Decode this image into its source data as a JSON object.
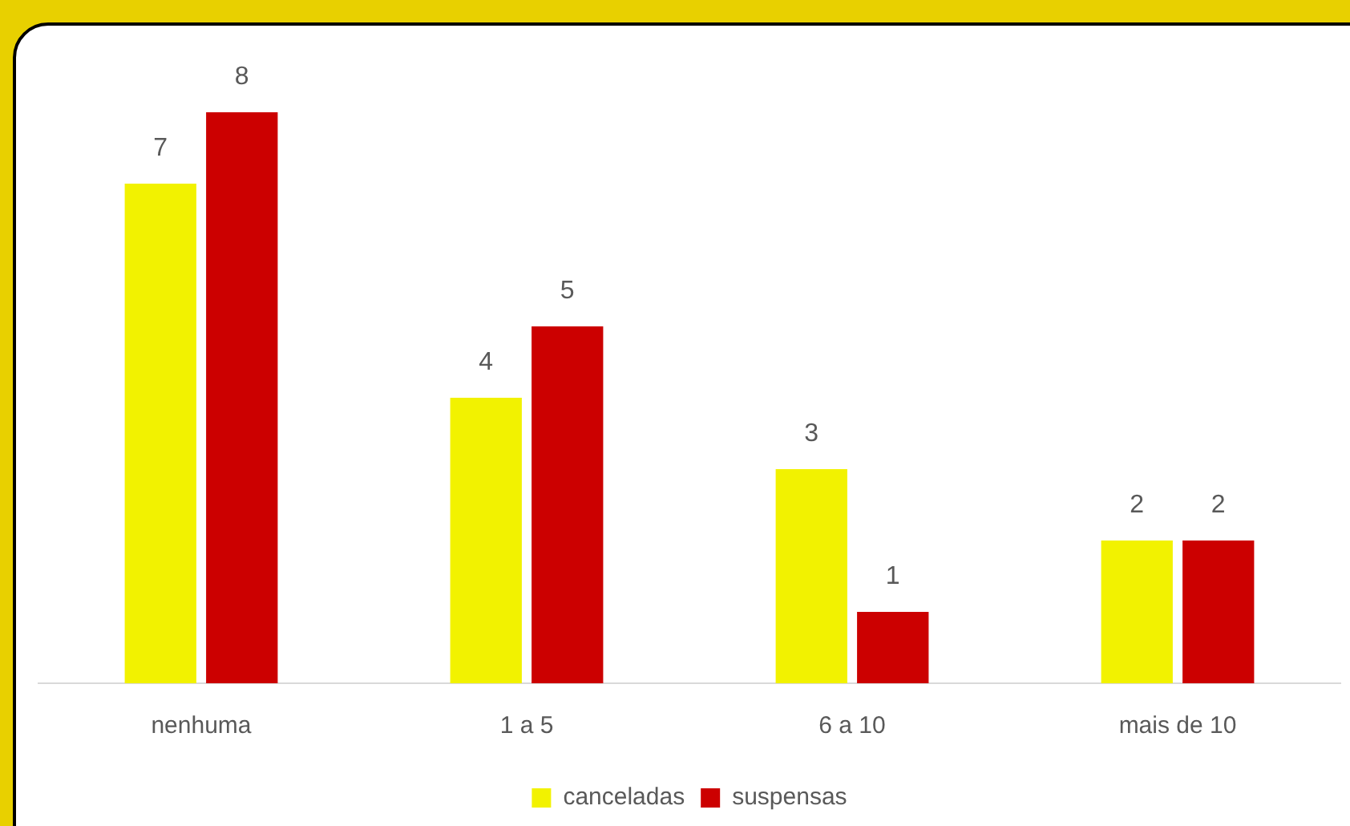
{
  "chart_data": {
    "type": "bar",
    "categories": [
      "nenhuma",
      "1 a 5",
      "6 a 10",
      "mais de 10"
    ],
    "series": [
      {
        "name": "canceladas",
        "color": "#f2f200",
        "values": [
          7,
          4,
          3,
          2
        ]
      },
      {
        "name": "suspensas",
        "color": "#cc0000",
        "values": [
          8,
          5,
          1,
          2
        ]
      }
    ],
    "data_labels": true,
    "grid": false,
    "legend": "bottom"
  }
}
